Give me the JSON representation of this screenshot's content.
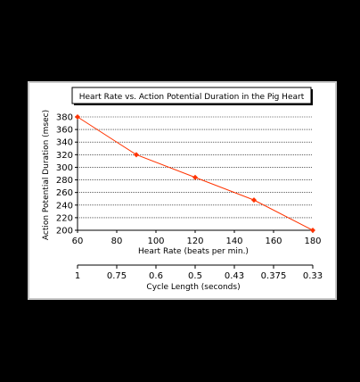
{
  "chart_data": {
    "type": "line",
    "title": "Heart Rate vs. Action Potential Duration in the Pig Heart",
    "xlabel": "Heart Rate (beats per min.)",
    "ylabel": "Action Potential Duration (msec)",
    "x": [
      60,
      90,
      120,
      150,
      180
    ],
    "series": [
      {
        "values": [
          380,
          320,
          284,
          248,
          200
        ]
      }
    ],
    "xlim": [
      60,
      180
    ],
    "ylim": [
      200,
      380
    ],
    "x_ticks": [
      "60",
      "80",
      "100",
      "120",
      "140",
      "160",
      "180"
    ],
    "y_ticks": [
      "200",
      "220",
      "240",
      "260",
      "280",
      "300",
      "320",
      "340",
      "360",
      "380"
    ],
    "secondary_axis": {
      "label": "Cycle Length (seconds)",
      "ticks": [
        "1",
        "0.75",
        "0.6",
        "0.5",
        "0.43",
        "0.375",
        "0.33"
      ]
    },
    "grid": true,
    "colors": {
      "series": "#ff3300",
      "background": "#000000",
      "panel": "#ffffff",
      "frame": "#cccccc"
    }
  }
}
